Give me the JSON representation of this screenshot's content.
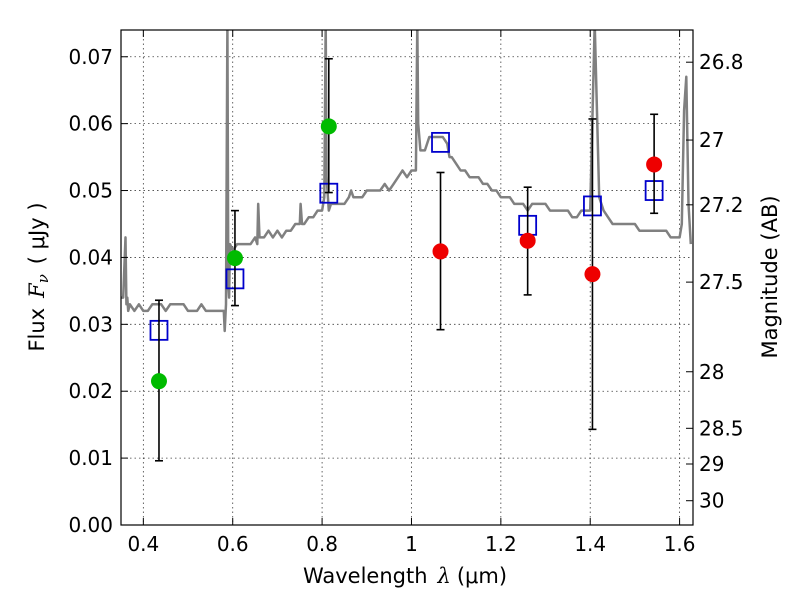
{
  "chart_data": {
    "type": "scatter",
    "xlabel": "Wavelength",
    "xlabel_symbol": "λ",
    "xlabel_unit": "(μm)",
    "ylabel": "Flux",
    "ylabel_symbol": "F",
    "ylabel_subscript": "ν",
    "ylabel_unit": "( μJy )",
    "y2label": "Magnitude (AB)",
    "xlim": [
      0.35,
      1.63
    ],
    "ylim": [
      0.0,
      0.074
    ],
    "grid": true,
    "x_ticks": [
      {
        "value": 0.4,
        "label": "0.4"
      },
      {
        "value": 0.6,
        "label": "0.6"
      },
      {
        "value": 0.8,
        "label": "0.8"
      },
      {
        "value": 1.0,
        "label": "1"
      },
      {
        "value": 1.2,
        "label": "1.2"
      },
      {
        "value": 1.4,
        "label": "1.4"
      },
      {
        "value": 1.6,
        "label": "1.6"
      }
    ],
    "y_ticks": [
      {
        "value": 0.0,
        "label": "0.00"
      },
      {
        "value": 0.01,
        "label": "0.01"
      },
      {
        "value": 0.02,
        "label": "0.02"
      },
      {
        "value": 0.03,
        "label": "0.03"
      },
      {
        "value": 0.04,
        "label": "0.04"
      },
      {
        "value": 0.05,
        "label": "0.05"
      },
      {
        "value": 0.06,
        "label": "0.06"
      },
      {
        "value": 0.07,
        "label": "0.07"
      }
    ],
    "y2_ticks": [
      {
        "value": 26.8,
        "label": "26.8"
      },
      {
        "value": 27.0,
        "label": "27"
      },
      {
        "value": 27.2,
        "label": "27.2"
      },
      {
        "value": 27.5,
        "label": "27.5"
      },
      {
        "value": 28.0,
        "label": "28"
      },
      {
        "value": 28.5,
        "label": "28.5"
      },
      {
        "value": 29.0,
        "label": "29"
      },
      {
        "value": 30.0,
        "label": "30"
      }
    ],
    "series": [
      {
        "kind": "spectrum",
        "color": "#808080",
        "x": [
          0.35,
          0.355,
          0.36,
          0.362,
          0.364,
          0.366,
          0.37,
          0.38,
          0.39,
          0.4,
          0.41,
          0.42,
          0.43,
          0.44,
          0.45,
          0.46,
          0.47,
          0.48,
          0.49,
          0.5,
          0.51,
          0.52,
          0.53,
          0.54,
          0.55,
          0.56,
          0.57,
          0.58,
          0.582,
          0.585,
          0.588,
          0.59,
          0.592,
          0.594,
          0.6,
          0.61,
          0.62,
          0.63,
          0.64,
          0.65,
          0.655,
          0.657,
          0.66,
          0.67,
          0.68,
          0.69,
          0.7,
          0.71,
          0.72,
          0.73,
          0.74,
          0.75,
          0.752,
          0.755,
          0.76,
          0.77,
          0.78,
          0.79,
          0.8,
          0.805,
          0.808,
          0.81,
          0.815,
          0.82,
          0.83,
          0.84,
          0.85,
          0.86,
          0.865,
          0.87,
          0.88,
          0.89,
          0.9,
          0.91,
          0.92,
          0.93,
          0.94,
          0.95,
          0.96,
          0.97,
          0.98,
          0.99,
          1.0,
          1.01,
          1.013,
          1.015,
          1.02,
          1.03,
          1.04,
          1.05,
          1.06,
          1.07,
          1.08,
          1.085,
          1.09,
          1.1,
          1.11,
          1.12,
          1.13,
          1.14,
          1.15,
          1.16,
          1.17,
          1.18,
          1.19,
          1.2,
          1.21,
          1.22,
          1.23,
          1.24,
          1.25,
          1.26,
          1.27,
          1.28,
          1.29,
          1.3,
          1.31,
          1.32,
          1.33,
          1.34,
          1.35,
          1.36,
          1.37,
          1.38,
          1.39,
          1.4,
          1.41,
          1.42,
          1.43,
          1.44,
          1.45,
          1.46,
          1.47,
          1.48,
          1.49,
          1.5,
          1.51,
          1.52,
          1.53,
          1.54,
          1.55,
          1.56,
          1.57,
          1.58,
          1.59,
          1.6,
          1.605,
          1.61,
          1.615,
          1.62,
          1.625
        ],
        "values": [
          0.034,
          0.034,
          0.043,
          0.033,
          0.034,
          0.032,
          0.033,
          0.032,
          0.033,
          0.032,
          0.032,
          0.033,
          0.033,
          0.033,
          0.032,
          0.033,
          0.033,
          0.033,
          0.033,
          0.032,
          0.032,
          0.032,
          0.033,
          0.032,
          0.032,
          0.032,
          0.032,
          0.032,
          0.029,
          0.033,
          0.075,
          0.036,
          0.034,
          0.042,
          0.041,
          0.042,
          0.042,
          0.042,
          0.042,
          0.043,
          0.042,
          0.048,
          0.043,
          0.043,
          0.044,
          0.043,
          0.044,
          0.043,
          0.044,
          0.044,
          0.045,
          0.045,
          0.048,
          0.045,
          0.045,
          0.046,
          0.046,
          0.047,
          0.047,
          0.049,
          0.075,
          0.052,
          0.047,
          0.048,
          0.048,
          0.048,
          0.048,
          0.049,
          0.05,
          0.049,
          0.049,
          0.049,
          0.05,
          0.05,
          0.05,
          0.05,
          0.051,
          0.05,
          0.051,
          0.052,
          0.053,
          0.052,
          0.053,
          0.053,
          0.075,
          0.06,
          0.056,
          0.056,
          0.058,
          0.058,
          0.058,
          0.058,
          0.057,
          0.055,
          0.055,
          0.054,
          0.053,
          0.053,
          0.052,
          0.052,
          0.052,
          0.051,
          0.051,
          0.05,
          0.05,
          0.049,
          0.049,
          0.049,
          0.048,
          0.048,
          0.048,
          0.047,
          0.048,
          0.048,
          0.048,
          0.048,
          0.047,
          0.047,
          0.047,
          0.047,
          0.047,
          0.046,
          0.046,
          0.047,
          0.047,
          0.047,
          0.075,
          0.049,
          0.047,
          0.046,
          0.045,
          0.045,
          0.045,
          0.045,
          0.045,
          0.045,
          0.044,
          0.044,
          0.044,
          0.044,
          0.044,
          0.044,
          0.044,
          0.043,
          0.043,
          0.043,
          0.045,
          0.062,
          0.067,
          0.048,
          0.042
        ]
      },
      {
        "kind": "model-photometry",
        "color": "#0000cc",
        "x": [
          0.435,
          0.605,
          0.815,
          1.065,
          1.26,
          1.405,
          1.543
        ],
        "values": [
          0.0291,
          0.0368,
          0.0496,
          0.0572,
          0.0448,
          0.0477,
          0.05
        ]
      },
      {
        "kind": "observed-photometry",
        "x": [
          0.435,
          0.605,
          0.815,
          1.065,
          1.26,
          1.405,
          1.543
        ],
        "values": [
          0.0215,
          0.0399,
          0.0596,
          0.0409,
          0.0425,
          0.0375,
          0.0539
        ],
        "err_low": [
          0.0096,
          0.0328,
          0.0497,
          0.0292,
          0.0344,
          0.0143,
          0.0466
        ],
        "err_high": [
          0.0336,
          0.047,
          0.0697,
          0.0527,
          0.0505,
          0.0607,
          0.0614
        ],
        "colors": [
          "#00bb00",
          "#00bb00",
          "#00bb00",
          "#ee0000",
          "#ee0000",
          "#ee0000",
          "#ee0000"
        ]
      }
    ]
  }
}
